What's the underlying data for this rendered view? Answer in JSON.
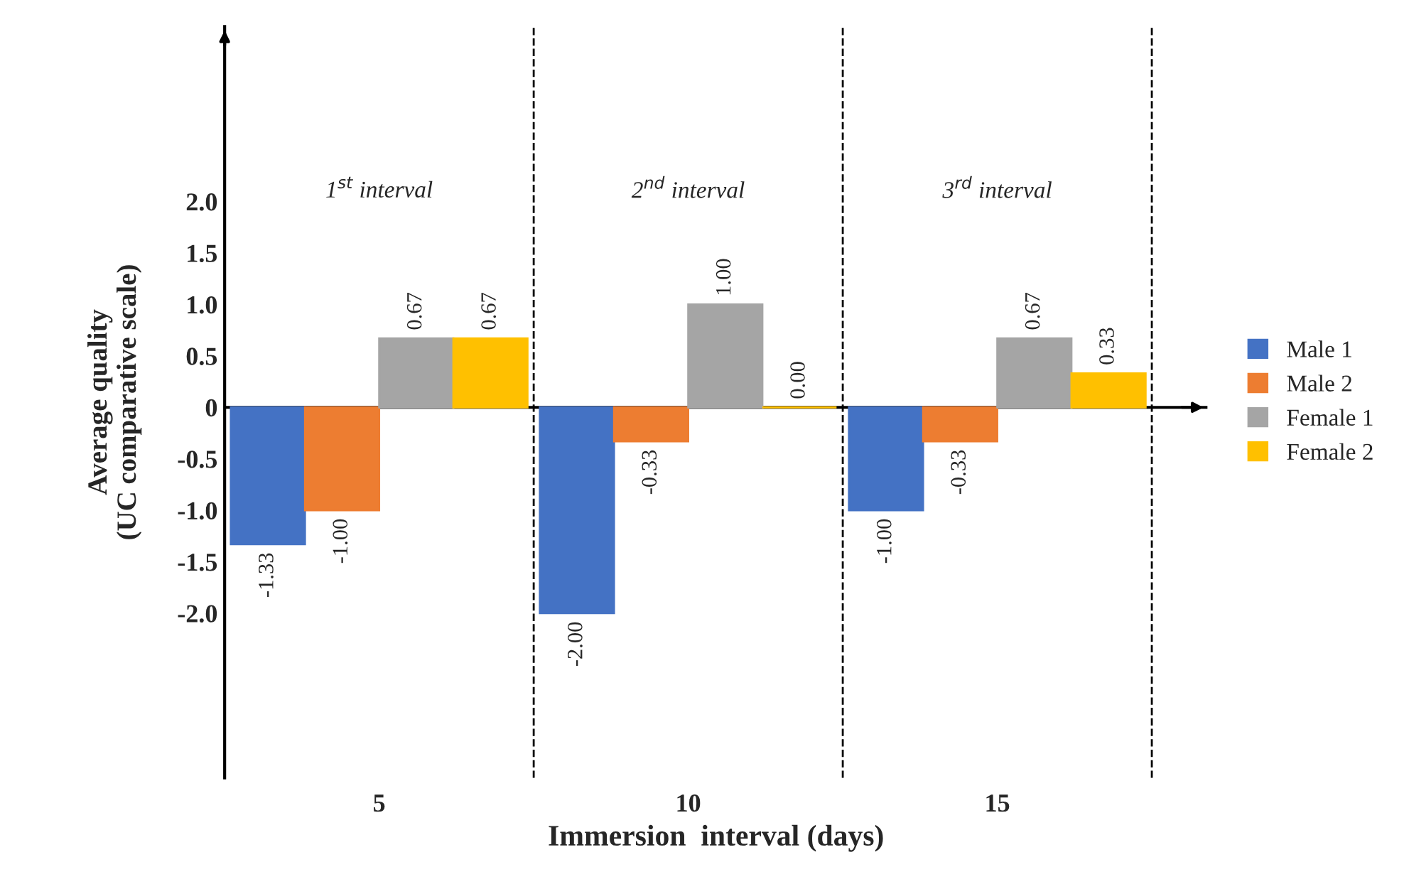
{
  "chart_data": {
    "type": "bar",
    "xlabel": "Immersion  interval (days)",
    "ylabel": "Average quality\n(UC comparative scale)",
    "categories": [
      "5",
      "10",
      "15"
    ],
    "series": [
      {
        "name": "Male 1",
        "color": "#4472c4",
        "values": [
          -1.33,
          -2.0,
          -1.0
        ]
      },
      {
        "name": "Male 2",
        "color": "#ed7d31",
        "values": [
          -1.0,
          -0.33,
          -0.33
        ]
      },
      {
        "name": "Female 1",
        "color": "#a5a5a5",
        "values": [
          0.67,
          1.0,
          0.67
        ]
      },
      {
        "name": "Female 2",
        "color": "#ffc000",
        "values": [
          0.67,
          0.0,
          0.33
        ]
      }
    ],
    "value_labels": [
      [
        "-1.33",
        "-2.00",
        "-1.00"
      ],
      [
        "-1.00",
        "-0.33",
        "-0.33"
      ],
      [
        "0.67",
        "1.00",
        "0.67"
      ],
      [
        "0.67",
        "0.00",
        "0.33"
      ]
    ],
    "ylim": [
      -3.6,
      3.7
    ],
    "yticks": [
      {
        "value": 2.0,
        "label": "2.0"
      },
      {
        "value": 1.5,
        "label": "1.5"
      },
      {
        "value": 1.0,
        "label": "1.0"
      },
      {
        "value": 0.5,
        "label": "0.5"
      },
      0,
      {
        "value": -0.5,
        "label": "-0.5"
      },
      {
        "value": -1.0,
        "label": "-1.0"
      },
      {
        "value": -1.5,
        "label": "-1.5"
      },
      {
        "value": -2.0,
        "label": "-2.0"
      }
    ],
    "ref_lines": [
      {
        "axis": "y",
        "value": 0,
        "color": "#000000",
        "line_style": "solid"
      }
    ],
    "annotations": [
      "1$^{st}$ interval",
      "2$^{nd}$ interval",
      "3$^{rd}$ interval"
    ],
    "grid": "x",
    "legend": "right"
  }
}
